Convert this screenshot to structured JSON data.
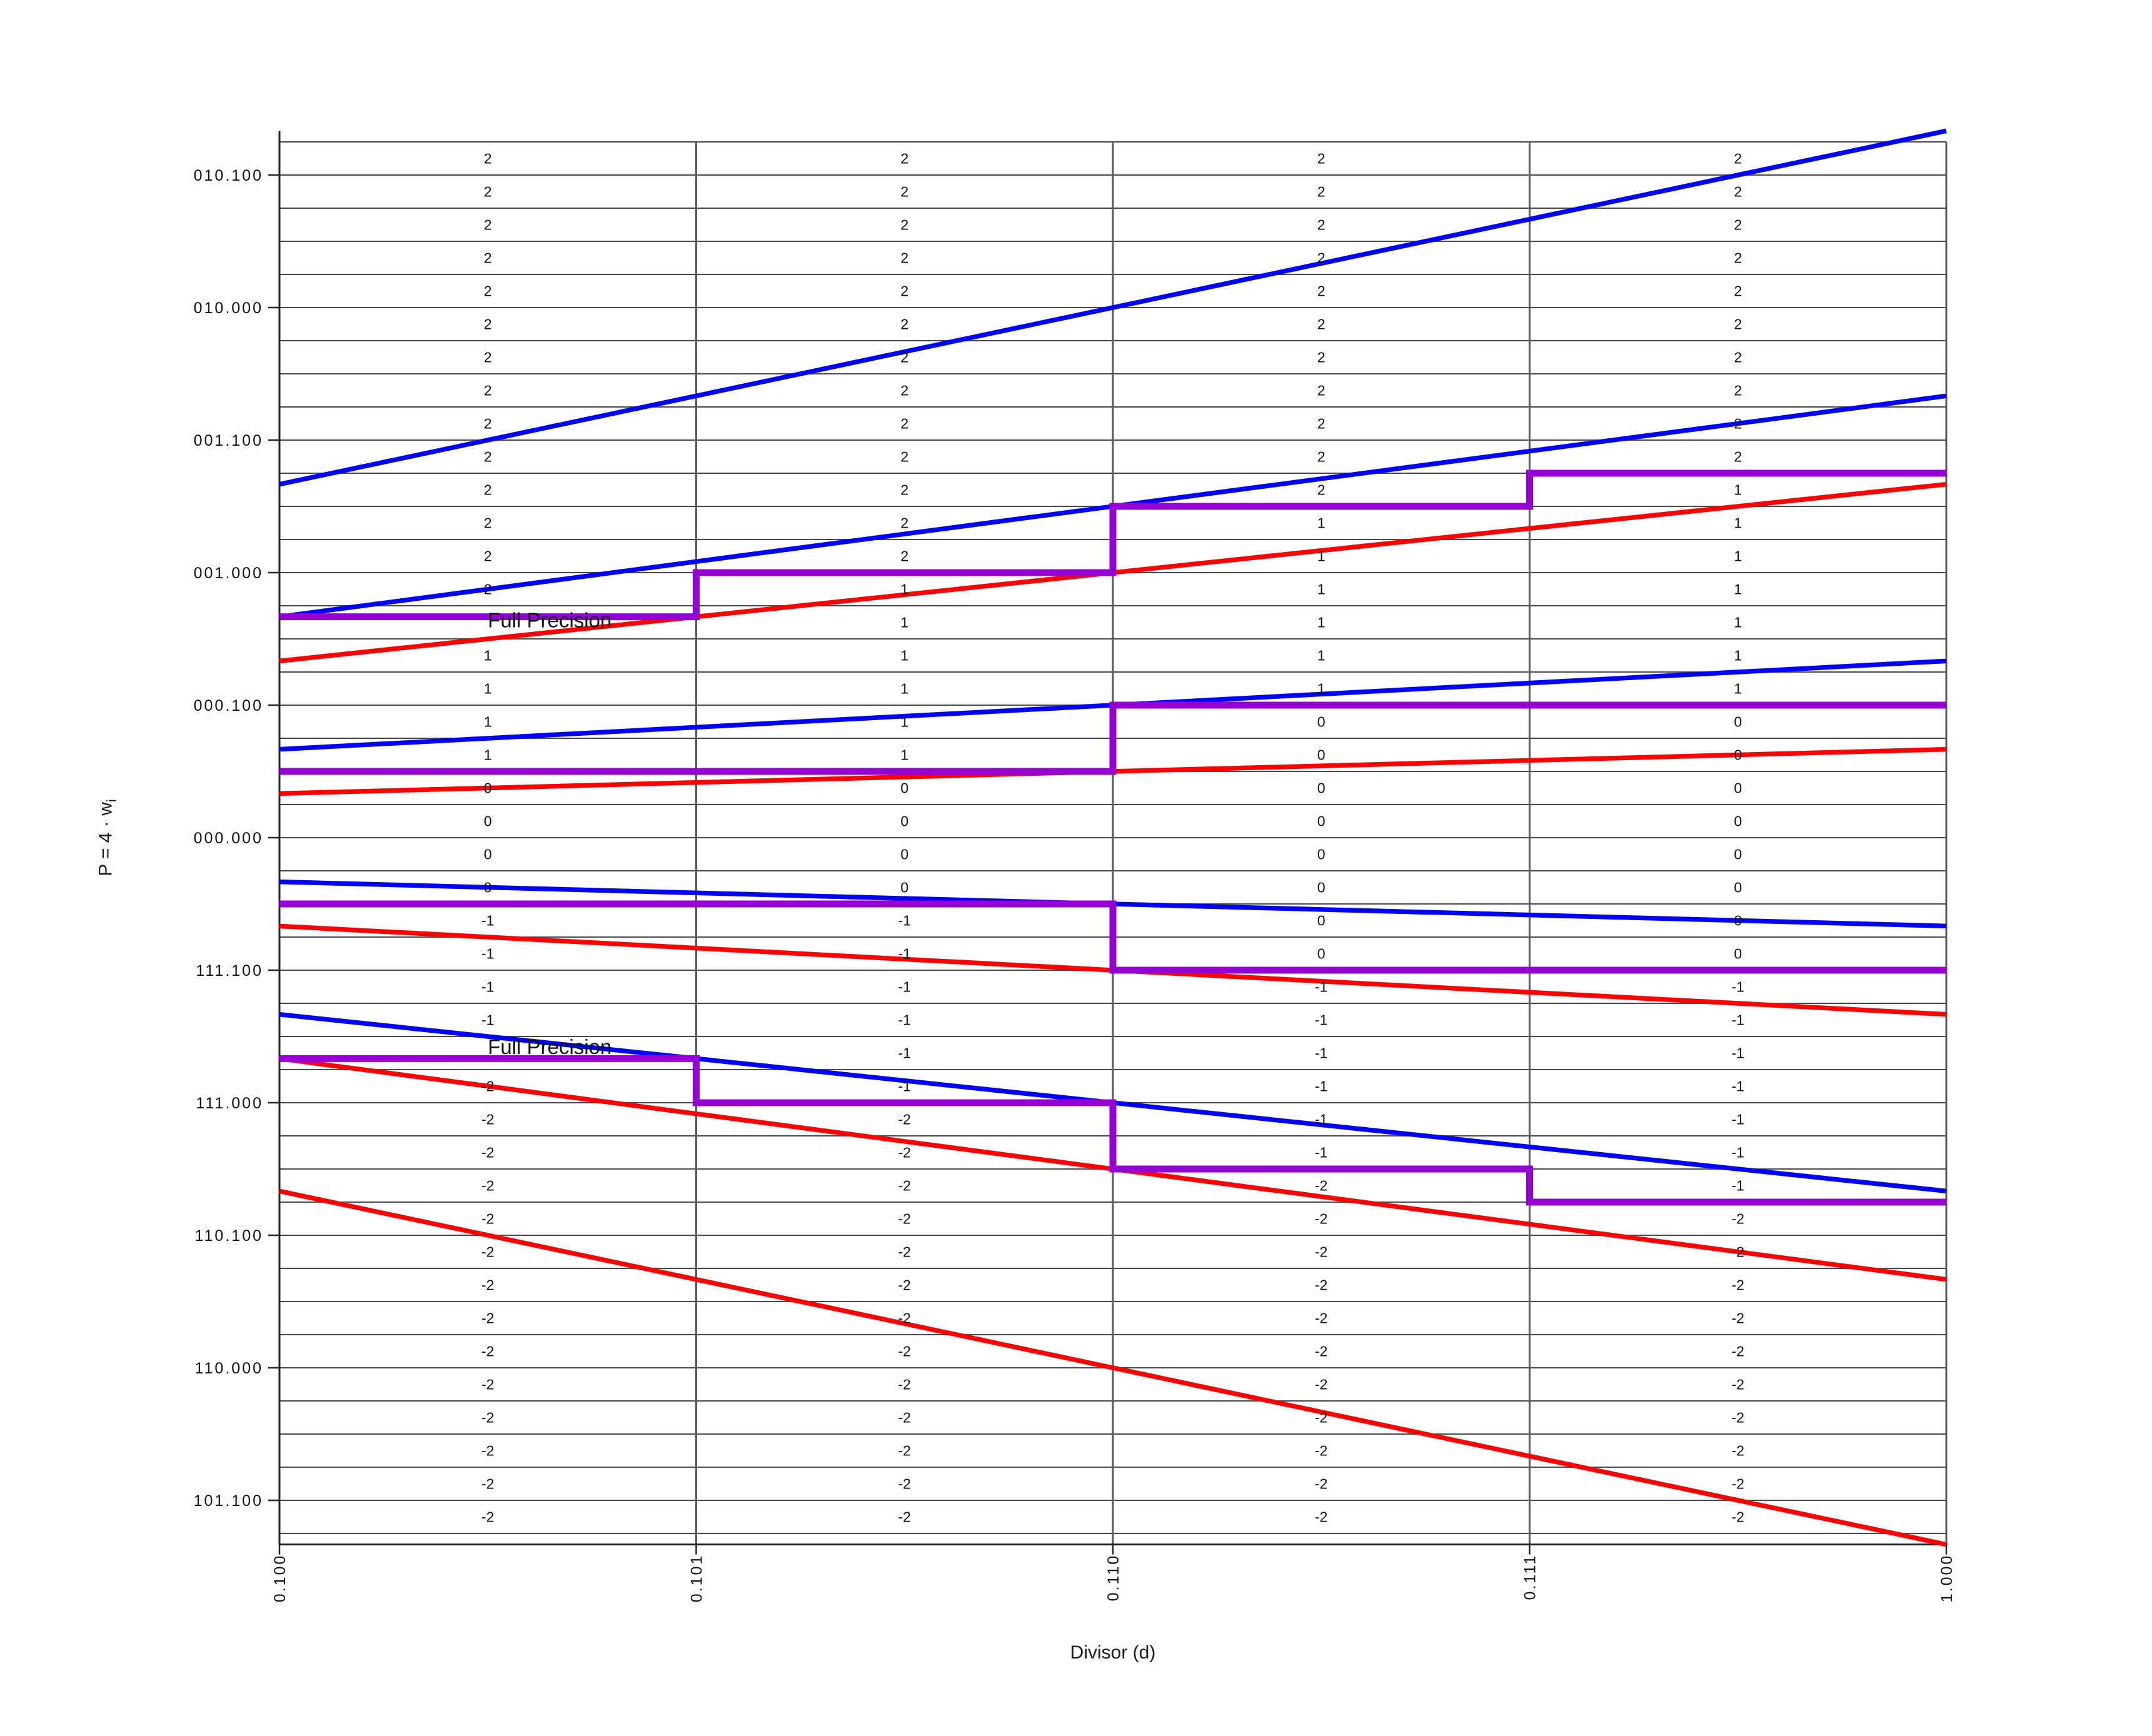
{
  "figure": {
    "background": "#ffffff"
  },
  "axis_labels": {
    "x": "Divisor (d)",
    "y_main": "P = 4 · w",
    "y_sub": "i"
  },
  "chart_data": {
    "type": "line",
    "title": "",
    "xlabel": "Divisor (d)",
    "ylabel": "P = 4 · w_i",
    "xlim": [
      0.5,
      1.0
    ],
    "ylim": [
      -2.6667,
      2.6667
    ],
    "grid": "on",
    "grid_step_p": 0.125,
    "x_ticks": [
      {
        "d": 0.5,
        "label": "0.100"
      },
      {
        "d": 0.625,
        "label": "0.101"
      },
      {
        "d": 0.75,
        "label": "0.110"
      },
      {
        "d": 0.875,
        "label": "0.111"
      },
      {
        "d": 1.0,
        "label": "1.000"
      }
    ],
    "y_ticks": [
      {
        "p": 2.5,
        "label": "010.100"
      },
      {
        "p": 2.0,
        "label": "010.000"
      },
      {
        "p": 1.5,
        "label": "001.100"
      },
      {
        "p": 1.0,
        "label": "001.000"
      },
      {
        "p": 0.5,
        "label": "000.100"
      },
      {
        "p": 0.0,
        "label": "000.000"
      },
      {
        "p": -0.5,
        "label": "111.100"
      },
      {
        "p": -1.0,
        "label": "111.000"
      },
      {
        "p": -1.5,
        "label": "110.100"
      },
      {
        "p": -2.0,
        "label": "110.000"
      },
      {
        "p": -2.5,
        "label": "101.100"
      }
    ],
    "colors": {
      "upper_bound": "#0000FF",
      "lower_bound": "#FF0000",
      "table_boundary": "#9400D3",
      "grid": "#4a4a4a",
      "spine": "#262626"
    },
    "bound_lines": [
      {
        "name": "upper-bound-digit-2",
        "color": "#0000FF",
        "slope": 2.66667
      },
      {
        "name": "upper-bound-digit-1",
        "color": "#0000FF",
        "slope": 1.66667
      },
      {
        "name": "upper-bound-digit-0",
        "color": "#0000FF",
        "slope": 0.66667
      },
      {
        "name": "upper-bound-digit--1",
        "color": "#0000FF",
        "slope": -0.33333
      },
      {
        "name": "upper-bound-digit--2",
        "color": "#0000FF",
        "slope": -1.33333
      },
      {
        "name": "lower-bound-digit-2",
        "color": "#FF0000",
        "slope": 1.33333
      },
      {
        "name": "lower-bound-digit-1",
        "color": "#FF0000",
        "slope": 0.33333
      },
      {
        "name": "lower-bound-digit-0",
        "color": "#FF0000",
        "slope": -0.66667
      },
      {
        "name": "lower-bound-digit--1",
        "color": "#FF0000",
        "slope": -1.66667
      },
      {
        "name": "lower-bound-digit--2",
        "color": "#FF0000",
        "slope": -2.66667
      }
    ],
    "staircases": [
      {
        "name": "selection-boundary-2-1",
        "color": "#9400D3",
        "points": [
          [
            0.5,
            0.83333
          ],
          [
            0.625,
            0.83333
          ],
          [
            0.625,
            1.0
          ],
          [
            0.75,
            1.0
          ],
          [
            0.75,
            1.25
          ],
          [
            0.875,
            1.25
          ],
          [
            0.875,
            1.375
          ],
          [
            1.0,
            1.375
          ]
        ]
      },
      {
        "name": "selection-boundary-1-0",
        "color": "#9400D3",
        "points": [
          [
            0.5,
            0.25
          ],
          [
            0.75,
            0.25
          ],
          [
            0.75,
            0.5
          ],
          [
            1.0,
            0.5
          ]
        ]
      },
      {
        "name": "selection-boundary-0--1",
        "color": "#9400D3",
        "points": [
          [
            0.5,
            -0.25
          ],
          [
            0.75,
            -0.25
          ],
          [
            0.75,
            -0.5
          ],
          [
            1.0,
            -0.5
          ]
        ]
      },
      {
        "name": "selection-boundary--1--2",
        "color": "#9400D3",
        "points": [
          [
            0.5,
            -0.83333
          ],
          [
            0.625,
            -0.83333
          ],
          [
            0.625,
            -1.0
          ],
          [
            0.75,
            -1.0
          ],
          [
            0.75,
            -1.25
          ],
          [
            0.875,
            -1.25
          ],
          [
            0.875,
            -1.375
          ],
          [
            1.0,
            -1.375
          ]
        ]
      }
    ],
    "digit_cells": {
      "top_center_p": 2.5625,
      "step_p": 0.125,
      "columns": [
        {
          "d_range": [
            0.5,
            0.625
          ],
          "runs": [
            [
              "2",
              14
            ],
            [
              "",
              1
            ],
            [
              "1",
              4
            ],
            [
              "0",
              4
            ],
            [
              "-1",
              4
            ],
            [
              "",
              1
            ],
            [
              "-2",
              14
            ]
          ]
        },
        {
          "d_range": [
            0.625,
            0.75
          ],
          "runs": [
            [
              "2",
              13
            ],
            [
              "1",
              6
            ],
            [
              "0",
              4
            ],
            [
              "-1",
              6
            ],
            [
              "-2",
              13
            ]
          ]
        },
        {
          "d_range": [
            0.75,
            0.875
          ],
          "runs": [
            [
              "2",
              11
            ],
            [
              "1",
              6
            ],
            [
              "0",
              8
            ],
            [
              "-1",
              6
            ],
            [
              "-2",
              11
            ]
          ]
        },
        {
          "d_range": [
            0.875,
            1.0
          ],
          "runs": [
            [
              "2",
              10
            ],
            [
              "1",
              7
            ],
            [
              "0",
              8
            ],
            [
              "-1",
              7
            ],
            [
              "-2",
              10
            ]
          ]
        }
      ]
    },
    "annotations": [
      {
        "text": "Full Precision",
        "d": 0.5625,
        "p": 0.82
      },
      {
        "text": "Full Precision",
        "d": 0.5625,
        "p": -0.79
      }
    ]
  }
}
